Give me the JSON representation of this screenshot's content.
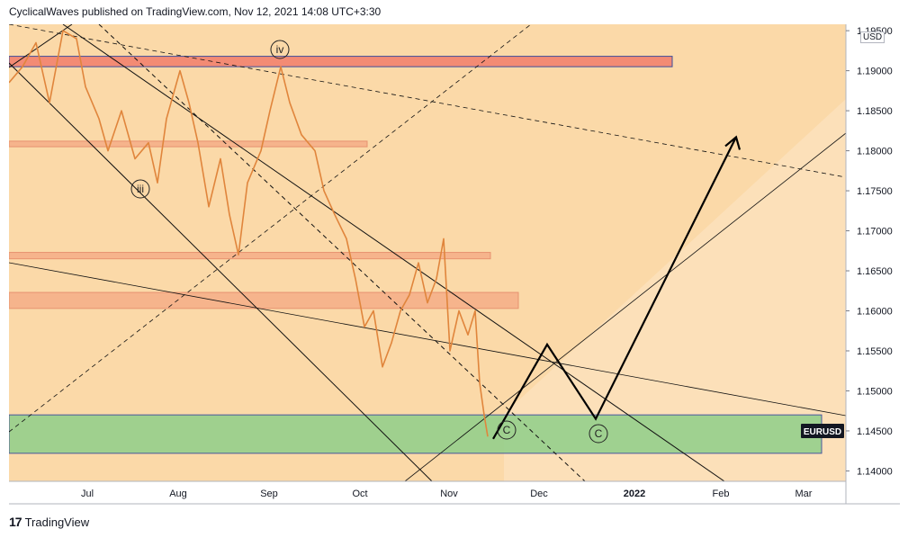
{
  "header": {
    "publisher_text": "CyclicalWaves published on TradingView.com, Nov 12, 2021 14:08 UTC+3:30"
  },
  "footer": {
    "brand": "TradingView",
    "logo_icon": "tradingview-logo-icon"
  },
  "chart_data": {
    "type": "candlestick",
    "symbol": "EURUSD",
    "currency": "USD",
    "y_ticks": [
      "1.14000",
      "1.14500",
      "1.15000",
      "1.15500",
      "1.16000",
      "1.16500",
      "1.17000",
      "1.17500",
      "1.18000",
      "1.18500",
      "1.19000",
      "1.19500"
    ],
    "x_ticks": [
      "Jul",
      "Aug",
      "Sep",
      "Oct",
      "Nov",
      "Dec",
      "2022",
      "Feb",
      "Mar"
    ],
    "ylim": [
      1.1387,
      1.1958
    ],
    "wave_labels": [
      "iv",
      "iii",
      "C",
      "C"
    ],
    "last_price_label": "EURUSD",
    "colors": {
      "background": "#fbd9a8",
      "price_line": "#e0853c",
      "support_zone": "#8fcf8a",
      "resistance_zone": "#f3836f",
      "resistance_zone_light": "#f6b08a",
      "projection": "#000000"
    },
    "zones": [
      {
        "name": "resistance-1.190",
        "from": 1.1905,
        "to": 1.1918
      },
      {
        "name": "resistance-1.181",
        "from": 1.1805,
        "to": 1.1812
      },
      {
        "name": "resistance-1.167",
        "from": 1.1665,
        "to": 1.1673
      },
      {
        "name": "resistance-1.161",
        "from": 1.1603,
        "to": 1.1623
      },
      {
        "name": "support-1.144",
        "from": 1.1422,
        "to": 1.147
      }
    ]
  }
}
